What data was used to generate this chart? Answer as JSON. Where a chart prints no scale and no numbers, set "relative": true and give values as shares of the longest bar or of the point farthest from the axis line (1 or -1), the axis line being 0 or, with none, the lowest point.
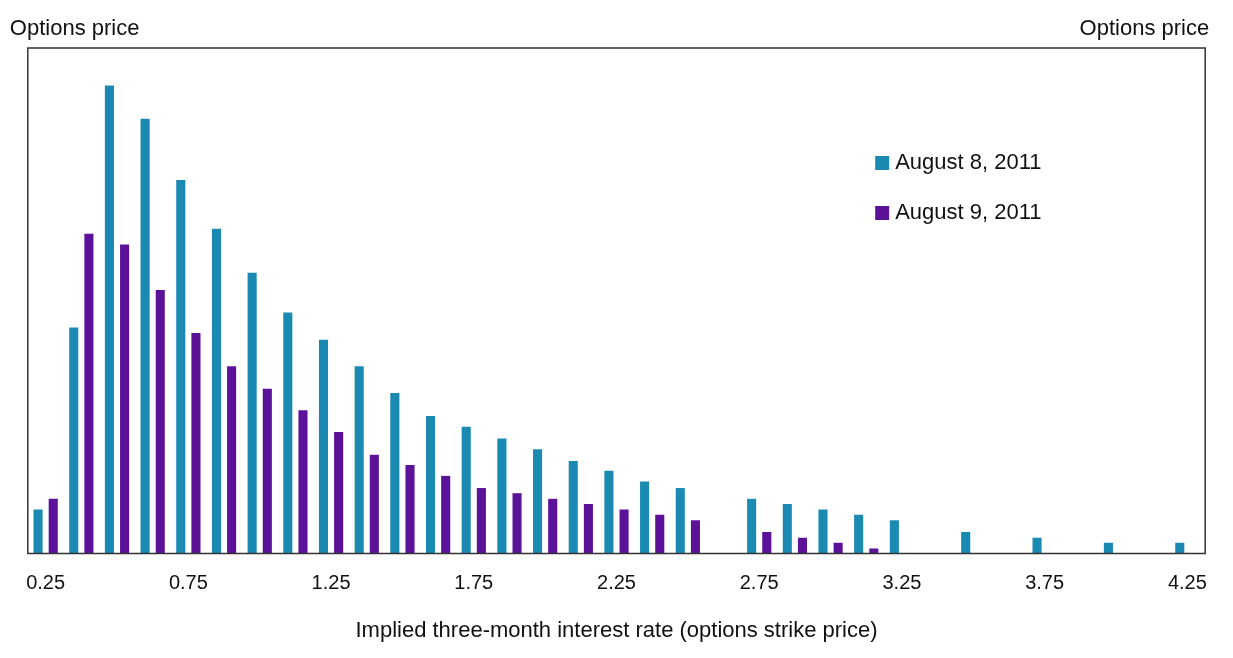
{
  "chart_data": {
    "type": "bar",
    "relative": true,
    "ylabel": "Options price",
    "y2label": "Options price",
    "xlabel": "Implied three-month interest rate (options strike price)",
    "categories": [
      "0.25",
      null,
      null,
      null,
      "0.75",
      null,
      null,
      null,
      "1.25",
      null,
      null,
      null,
      "1.75",
      null,
      null,
      null,
      "2.25",
      null,
      null,
      null,
      "2.75",
      null,
      null,
      null,
      "3.25",
      null,
      null,
      null,
      "3.75",
      null,
      null,
      null,
      "4.25"
    ],
    "series": [
      {
        "name": "August 8, 2011",
        "color": "#1b8ab3",
        "values": [
          0.094,
          0.483,
          1,
          0.929,
          0.798,
          0.694,
          0.6,
          0.515,
          0.457,
          0.4,
          0.343,
          0.294,
          0.271,
          0.246,
          0.223,
          0.198,
          0.177,
          0.154,
          0.14,
          null,
          0.117,
          0.106,
          0.094,
          0.083,
          0.071,
          null,
          0.046,
          null,
          0.034,
          null,
          0.023,
          null,
          0.023
        ]
      },
      {
        "name": "August 9, 2011",
        "color": "#5b1299",
        "values": [
          0.117,
          0.683,
          0.66,
          0.563,
          0.471,
          0.4,
          0.352,
          0.306,
          0.26,
          0.211,
          0.189,
          0.166,
          0.14,
          0.129,
          0.117,
          0.106,
          0.094,
          0.083,
          0.071,
          null,
          0.046,
          0.034,
          0.023,
          0.011,
          null,
          null,
          null,
          null,
          null,
          null,
          null,
          null,
          null
        ]
      }
    ],
    "legend": "top right",
    "grid": false
  }
}
